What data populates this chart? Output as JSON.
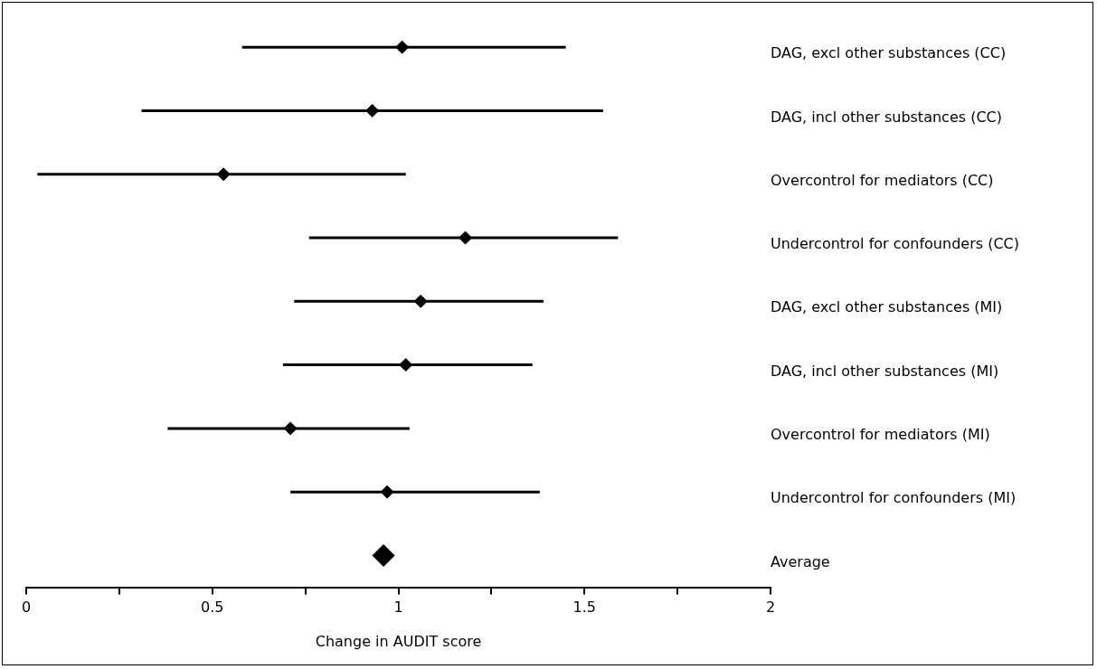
{
  "chart_data": {
    "type": "scatter",
    "orientation": "horizontal",
    "xlabel": "Change in AUDIT score",
    "categories": [
      "DAG, excl other substances (CC)",
      "DAG, incl other substances (CC)",
      "Overcontrol for mediators (CC)",
      "Undercontrol for confounders (CC)",
      "DAG, excl other substances (MI)",
      "DAG, incl other substances (MI)",
      "Overcontrol for mediators (MI)",
      "Undercontrol for confounders (MI)",
      "Average"
    ],
    "series": [
      {
        "color": "#000000",
        "values": [
          1.01,
          0.93,
          0.53,
          1.18,
          1.06,
          1.02,
          0.71,
          0.97,
          null
        ],
        "errors": [
          [
            0.58,
            1.45
          ],
          [
            0.31,
            1.55
          ],
          [
            0.03,
            1.02
          ],
          [
            0.76,
            1.59
          ],
          [
            0.72,
            1.39
          ],
          [
            0.69,
            1.36
          ],
          [
            0.38,
            1.03
          ],
          [
            0.71,
            1.38
          ],
          null
        ]
      },
      {
        "color": "#000000",
        "values": [
          null,
          null,
          null,
          null,
          null,
          null,
          null,
          null,
          0.96
        ]
      }
    ],
    "xlim": [
      0,
      2
    ],
    "xticks": [
      0,
      {
        "value": 0.25,
        "label": null
      },
      0.5,
      {
        "value": 0.75,
        "label": null
      },
      1,
      {
        "value": 1.25,
        "label": null
      },
      1.5,
      {
        "value": 1.75,
        "label": null
      },
      2
    ],
    "marker": "diamond",
    "grid": false,
    "legend": false
  }
}
